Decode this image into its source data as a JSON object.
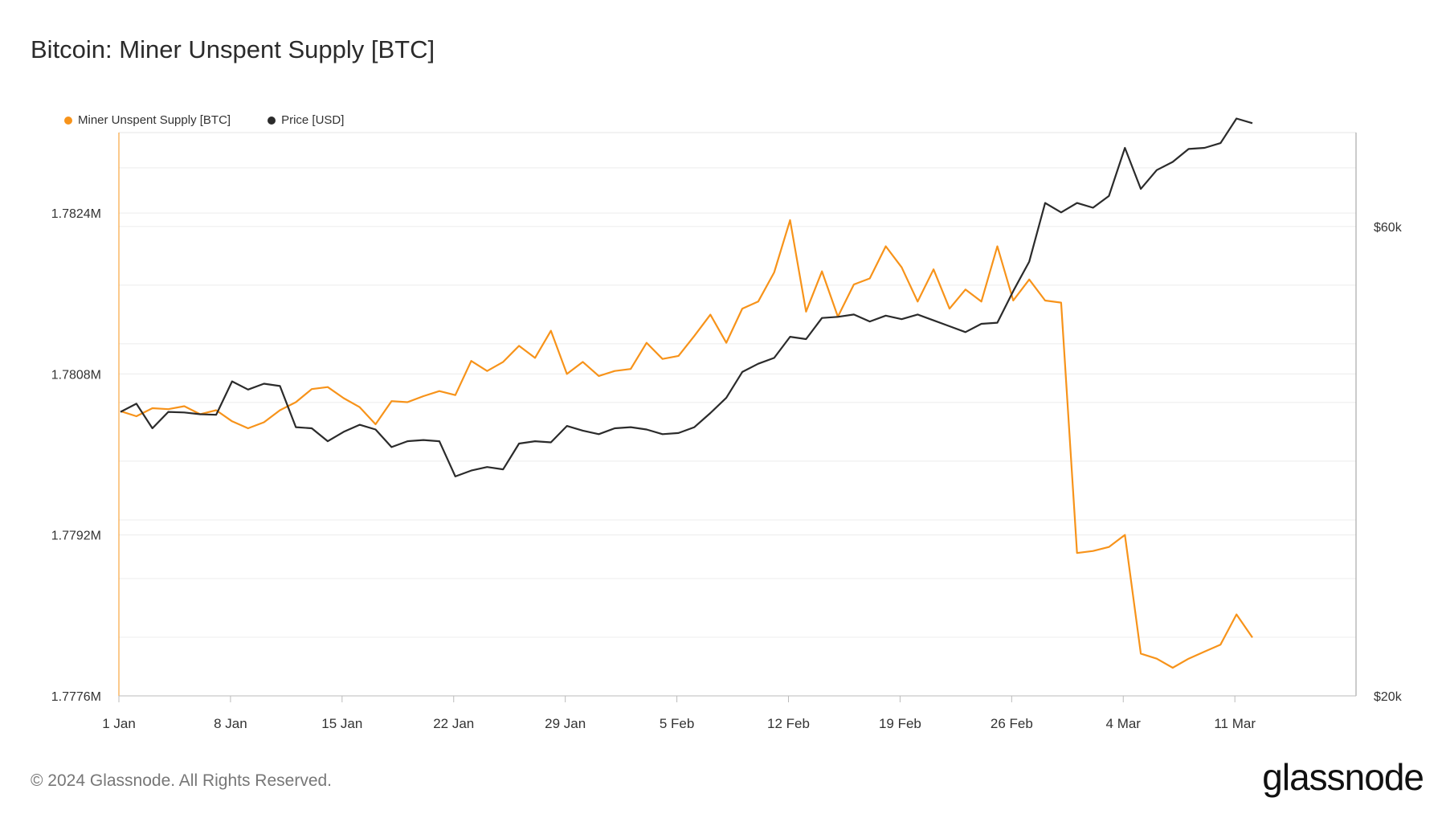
{
  "title": "Bitcoin: Miner Unspent Supply [BTC]",
  "footer": "© 2024 Glassnode. All Rights Reserved.",
  "brand": "glassnode",
  "colors": {
    "supply": "#f7931a",
    "price": "#2b2b2b",
    "grid": "#ececec"
  },
  "chart_data": {
    "type": "line",
    "title": "Bitcoin: Miner Unspent Supply [BTC]",
    "grid": true,
    "legend_position": "top-left",
    "x_labels": [
      "1 Jan",
      "8 Jan",
      "15 Jan",
      "22 Jan",
      "29 Jan",
      "5 Feb",
      "12 Feb",
      "19 Feb",
      "26 Feb",
      "4 Mar",
      "11 Mar"
    ],
    "y_left": {
      "range": [
        1777600,
        1783200
      ],
      "ticks": [
        1777600,
        1779200,
        1780800,
        1782400
      ],
      "tick_labels": [
        "1.7776M",
        "1.7792M",
        "1.7808M",
        "1.7824M"
      ]
    },
    "y_right": {
      "range": [
        20000,
        68000
      ],
      "ticks": [
        20000,
        60000
      ],
      "tick_labels": [
        "$20k",
        "$60k"
      ]
    },
    "series": [
      {
        "name": "Miner Unspent Supply [BTC]",
        "axis": "left",
        "color": "#f7931a",
        "values": [
          1780430,
          1780380,
          1780460,
          1780450,
          1780480,
          1780400,
          1780440,
          1780330,
          1780260,
          1780320,
          1780440,
          1780520,
          1780650,
          1780670,
          1780560,
          1780470,
          1780300,
          1780530,
          1780520,
          1780580,
          1780630,
          1780590,
          1780930,
          1780830,
          1780920,
          1781080,
          1780960,
          1781230,
          1780800,
          1780920,
          1780780,
          1780830,
          1780850,
          1781110,
          1780950,
          1780980,
          1781180,
          1781390,
          1781110,
          1781450,
          1781520,
          1781810,
          1782330,
          1781420,
          1781820,
          1781370,
          1781690,
          1781750,
          1782070,
          1781860,
          1781520,
          1781840,
          1781450,
          1781640,
          1781520,
          1782070,
          1781530,
          1781740,
          1781530,
          1781510,
          1779020,
          1779040,
          1779080,
          1779200,
          1778020,
          1777970,
          1777880,
          1777970,
          1778040,
          1778110,
          1778410,
          1778180
        ]
      },
      {
        "name": "Price [USD]",
        "axis": "right",
        "color": "#2b2b2b",
        "values": [
          44200,
          44900,
          42800,
          44200,
          44150,
          44000,
          43950,
          46800,
          46100,
          46600,
          46400,
          42900,
          42800,
          41700,
          42500,
          43100,
          42700,
          41200,
          41700,
          41800,
          41700,
          38700,
          39200,
          39500,
          39300,
          41500,
          41700,
          41600,
          43000,
          42600,
          42300,
          42800,
          42900,
          42700,
          42300,
          42400,
          42900,
          44100,
          45400,
          47600,
          48300,
          48800,
          50600,
          50400,
          52200,
          52300,
          52500,
          51900,
          52400,
          52100,
          52500,
          52000,
          51500,
          51000,
          51700,
          51800,
          54500,
          57000,
          62000,
          61200,
          62000,
          61600,
          62600,
          66700,
          63200,
          64800,
          65500,
          66600,
          66700,
          67100,
          69200,
          68800
        ]
      }
    ]
  }
}
